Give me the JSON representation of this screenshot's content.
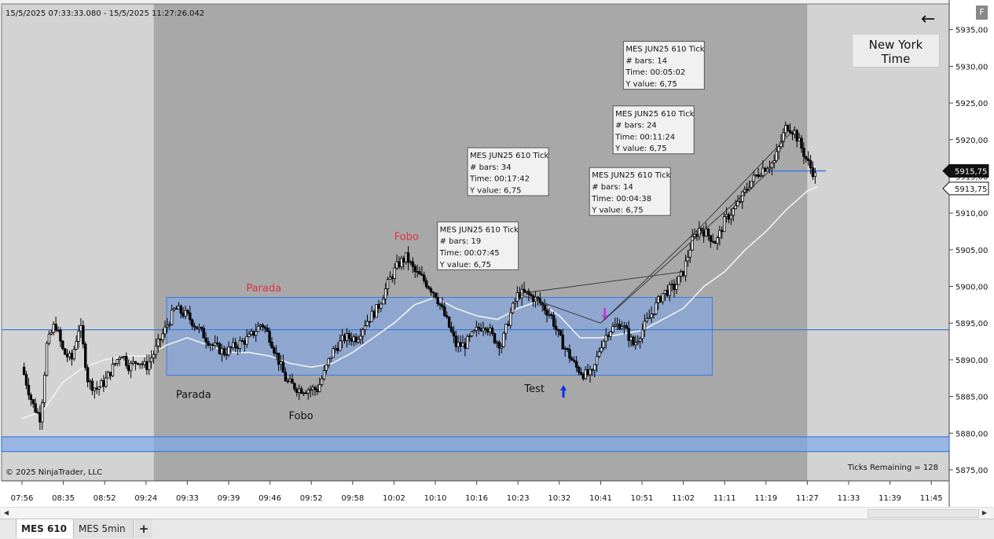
{
  "header": {
    "range": "15/5/2025 07:33:33.080 - 15/5/2025 11:27:26.042",
    "copyright": "© 2025 NinjaTrader, LLC",
    "ticks_remaining": "Ticks Remaining = 128",
    "timezone_label": "New York Time",
    "f_button": "F",
    "back_arrow": "←"
  },
  "tabs": [
    {
      "label": "MES 610",
      "active": true
    },
    {
      "label": "MES 5min",
      "active": false
    },
    {
      "label": "+",
      "active": false
    }
  ],
  "colors": {
    "session_shade": "#a8a8a8",
    "outside_shade": "#d3d3d3",
    "zone_fill": "#7aa6ee",
    "zone_stroke": "#3a7be0",
    "candle": "#000000",
    "ema": "#f2f2f2",
    "label_red": "#e0304a",
    "arrow_up": "#1030e8",
    "arrow_down": "#c040d8"
  },
  "chart_data": {
    "type": "candlestick",
    "symbol": "MES JUN25 610 Tick",
    "ylim": [
      5873.5,
      5938.5
    ],
    "y_ticks": [
      5875,
      5880,
      5885,
      5890,
      5895,
      5900,
      5905,
      5910,
      5915,
      5920,
      5925,
      5930,
      5935
    ],
    "y_tick_labels": [
      "5875,00",
      "5880,00",
      "5885,00",
      "5890,00",
      "5895,00",
      "5900,00",
      "5905,00",
      "5910,00",
      "5915,00",
      "5920,00",
      "5925,00",
      "5930,00",
      "5935,00"
    ],
    "x_tick_labels": [
      "07:56",
      "08:35",
      "08:52",
      "09:24",
      "09:33",
      "09:39",
      "09:46",
      "09:52",
      "09:58",
      "10:02",
      "10:10",
      "10:16",
      "10:23",
      "10:32",
      "10:41",
      "10:51",
      "11:02",
      "11:11",
      "11:19",
      "11:27",
      "11:33",
      "11:39",
      "11:45"
    ],
    "x_tick_index": [
      0,
      1,
      2,
      3,
      4,
      5,
      6,
      7,
      8,
      9,
      10,
      11,
      12,
      13,
      14,
      15,
      16,
      17,
      18,
      19,
      20,
      21,
      22
    ],
    "price_anchors": [
      [
        0,
        5889
      ],
      [
        0.25,
        5884
      ],
      [
        0.45,
        5882
      ],
      [
        0.6,
        5892
      ],
      [
        0.8,
        5895
      ],
      [
        1.0,
        5891
      ],
      [
        1.2,
        5890
      ],
      [
        1.4,
        5895
      ],
      [
        1.6,
        5887
      ],
      [
        1.8,
        5886
      ],
      [
        2.0,
        5887
      ],
      [
        2.2,
        5889
      ],
      [
        2.4,
        5891
      ],
      [
        2.6,
        5889
      ],
      [
        2.8,
        5890
      ],
      [
        3.0,
        5889
      ],
      [
        3.2,
        5891
      ],
      [
        3.45,
        5894
      ],
      [
        3.7,
        5897
      ],
      [
        4.0,
        5896
      ],
      [
        4.3,
        5894
      ],
      [
        4.6,
        5892
      ],
      [
        4.9,
        5891
      ],
      [
        5.2,
        5892
      ],
      [
        5.5,
        5893
      ],
      [
        5.8,
        5895
      ],
      [
        6.0,
        5893
      ],
      [
        6.2,
        5890
      ],
      [
        6.4,
        5887
      ],
      [
        6.7,
        5886
      ],
      [
        6.9,
        5886
      ],
      [
        7.15,
        5886
      ],
      [
        7.3,
        5888
      ],
      [
        7.5,
        5891
      ],
      [
        7.8,
        5893
      ],
      [
        8.1,
        5893
      ],
      [
        8.3,
        5895
      ],
      [
        8.6,
        5897
      ],
      [
        8.9,
        5901
      ],
      [
        9.1,
        5903
      ],
      [
        9.3,
        5904
      ],
      [
        9.5,
        5902
      ],
      [
        9.7,
        5901
      ],
      [
        10.0,
        5899
      ],
      [
        10.3,
        5895
      ],
      [
        10.5,
        5892
      ],
      [
        10.7,
        5892
      ],
      [
        11.0,
        5894
      ],
      [
        11.2,
        5895
      ],
      [
        11.4,
        5893
      ],
      [
        11.6,
        5892
      ],
      [
        11.8,
        5896
      ],
      [
        12.0,
        5899
      ],
      [
        12.2,
        5899
      ],
      [
        12.5,
        5898
      ],
      [
        12.8,
        5896
      ],
      [
        13.0,
        5893
      ],
      [
        13.2,
        5891
      ],
      [
        13.4,
        5889
      ],
      [
        13.6,
        5888
      ],
      [
        13.8,
        5888
      ],
      [
        14.0,
        5892
      ],
      [
        14.2,
        5894
      ],
      [
        14.5,
        5895
      ],
      [
        14.8,
        5892
      ],
      [
        15.0,
        5894
      ],
      [
        15.2,
        5896
      ],
      [
        15.5,
        5899
      ],
      [
        15.8,
        5900
      ],
      [
        16.0,
        5902
      ],
      [
        16.2,
        5906
      ],
      [
        16.4,
        5908
      ],
      [
        16.8,
        5906
      ],
      [
        17.0,
        5909
      ],
      [
        17.3,
        5911
      ],
      [
        17.6,
        5914
      ],
      [
        17.9,
        5916
      ],
      [
        18.2,
        5917
      ],
      [
        18.5,
        5922
      ],
      [
        18.7,
        5921
      ],
      [
        19.0,
        5917
      ],
      [
        19.2,
        5915
      ]
    ],
    "ema_anchors": [
      [
        0,
        5882
      ],
      [
        0.5,
        5883
      ],
      [
        1.0,
        5887
      ],
      [
        1.5,
        5889
      ],
      [
        2.0,
        5890
      ],
      [
        2.5,
        5890.5
      ],
      [
        3.0,
        5890.5
      ],
      [
        3.5,
        5892
      ],
      [
        4.0,
        5893
      ],
      [
        4.5,
        5892
      ],
      [
        5.0,
        5891
      ],
      [
        5.5,
        5891
      ],
      [
        6.0,
        5890.5
      ],
      [
        6.5,
        5889.5
      ],
      [
        7.0,
        5889
      ],
      [
        7.5,
        5889.5
      ],
      [
        8.0,
        5891
      ],
      [
        8.5,
        5893
      ],
      [
        9.0,
        5895
      ],
      [
        9.5,
        5897.5
      ],
      [
        10.0,
        5898.5
      ],
      [
        10.5,
        5897
      ],
      [
        11.0,
        5896
      ],
      [
        11.5,
        5895.5
      ],
      [
        12.0,
        5897
      ],
      [
        12.5,
        5898
      ],
      [
        13.0,
        5896
      ],
      [
        13.5,
        5893
      ],
      [
        14.0,
        5893
      ],
      [
        14.5,
        5893.5
      ],
      [
        15.0,
        5894
      ],
      [
        15.5,
        5895.5
      ],
      [
        16.0,
        5897
      ],
      [
        16.5,
        5900
      ],
      [
        17.0,
        5902
      ],
      [
        17.5,
        5905
      ],
      [
        18.0,
        5907.5
      ],
      [
        18.5,
        5910.5
      ],
      [
        19.0,
        5913
      ],
      [
        19.3,
        5913.75
      ]
    ],
    "range_zone": {
      "x_start": 3.5,
      "x_end": 16.7,
      "y_low": 5887.9,
      "y_high": 5898.5
    },
    "horizontal_lines": [
      5894.1,
      5915.75
    ],
    "horizontal_band": {
      "y_low": 5877.5,
      "y_high": 5879.5
    },
    "session_shade": {
      "x_start": 3.0,
      "x_end": 19.0
    },
    "current_price": {
      "label": "5915,75",
      "value": 5915.75
    },
    "ema_price": {
      "label": "5913,75",
      "value": 5913.75
    },
    "chart_labels": [
      {
        "text": "Fobo",
        "x": 9.3,
        "y": 5906.3,
        "color": "red"
      },
      {
        "text": "Parada",
        "x": 5.85,
        "y": 5899.3,
        "color": "red"
      },
      {
        "text": "Parada",
        "x": 4.15,
        "y": 5884.8,
        "color": "dark"
      },
      {
        "text": "Fobo",
        "x": 6.75,
        "y": 5881.9,
        "color": "dark"
      },
      {
        "text": "Test",
        "x": 12.4,
        "y": 5885.6,
        "color": "dark"
      }
    ],
    "markers": [
      {
        "type": "up-arrow",
        "x": 13.1,
        "y": 5885.6
      },
      {
        "type": "down-arrow",
        "x": 14.1,
        "y": 5896.3
      }
    ],
    "measure_boxes": [
      {
        "title": "MES JUN25 610 Tick",
        "bars": "# bars:   19",
        "time": "Time:      00:07:45",
        "yvalue": "Y value:  6,75",
        "box_x": 10.05,
        "box_y": 5908.8,
        "from": [
          12.0,
          5899
        ],
        "to": [
          14.0,
          5895
        ]
      },
      {
        "title": "MES JUN25 610 Tick",
        "bars": "# bars:   34",
        "time": "Time:      00:17:42",
        "yvalue": "Y value:  6,75",
        "box_x": 10.78,
        "box_y": 5918.9,
        "from": [
          12.0,
          5899
        ],
        "to": [
          16.0,
          5902
        ]
      },
      {
        "title": "MES JUN25 610 Tick",
        "bars": "# bars:   14",
        "time": "Time:      00:04:38",
        "yvalue": "Y value:  6,75",
        "box_x": 13.73,
        "box_y": 5916.2,
        "from": [
          14.0,
          5895
        ],
        "to": [
          16.4,
          5908
        ]
      },
      {
        "title": "MES JUN25 610 Tick",
        "bars": "# bars:   24",
        "time": "Time:      00:11:24",
        "yvalue": "Y value:  6,75",
        "box_x": 14.3,
        "box_y": 5924.6,
        "from": [
          14.0,
          5895
        ],
        "to": [
          18.1,
          5915.75
        ]
      },
      {
        "title": "MES JUN25 610 Tick",
        "bars": "# bars:   14",
        "time": "Time:      00:05:02",
        "yvalue": "Y value:  6,75",
        "box_x": 14.55,
        "box_y": 5933.4,
        "from": [
          16.4,
          5908
        ],
        "to": [
          18.7,
          5921.5
        ]
      }
    ]
  }
}
